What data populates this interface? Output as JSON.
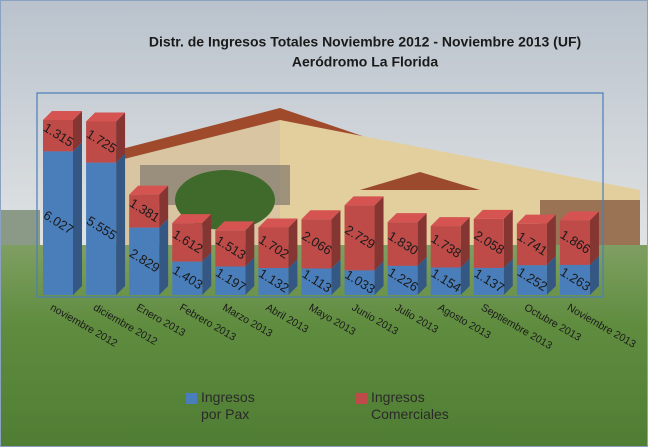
{
  "chart_data": {
    "type": "bar",
    "stacked": true,
    "title": "Distr. de Ingresos Totales  Noviembre 2012 - Noviembre 2013  (UF)",
    "subtitle": "Aeródromo La Florida",
    "categories": [
      "noviembre 2012",
      "diciembre 2012",
      "Enero 2013",
      "Febrero 2013",
      "Marzo 2013",
      "Abril 2013",
      "Mayo 2013",
      "Junio 2013",
      "Julio 2013",
      "Agosto 2013",
      "Septiembre 2013",
      "Octubre 2013",
      "Noviembre 2013"
    ],
    "series": [
      {
        "name": "Ingresos por Pax",
        "color": "#4a7ebb",
        "values": [
          6027,
          5555,
          2829,
          1403,
          1197,
          1132,
          1113,
          1033,
          1226,
          1154,
          1137,
          1252,
          1263
        ],
        "value_labels": [
          "6.027",
          "5.555",
          "2.829",
          "1.403",
          "1.197",
          "1.132",
          "1.113",
          "1.033",
          "1.226",
          "1.154",
          "1.137",
          "1.252",
          "1.263"
        ]
      },
      {
        "name": "Ingresos Comerciales",
        "color": "#be4b48",
        "values": [
          1315,
          1725,
          1381,
          1612,
          1513,
          1702,
          2066,
          2729,
          1830,
          1738,
          2058,
          1741,
          1866
        ],
        "value_labels": [
          "1.315",
          "1.725",
          "1.381",
          "1.612",
          "1.513",
          "1.702",
          "2.066",
          "2.729",
          "1.830",
          "1.738",
          "2.058",
          "1.741",
          "1.866"
        ]
      }
    ]
  }
}
